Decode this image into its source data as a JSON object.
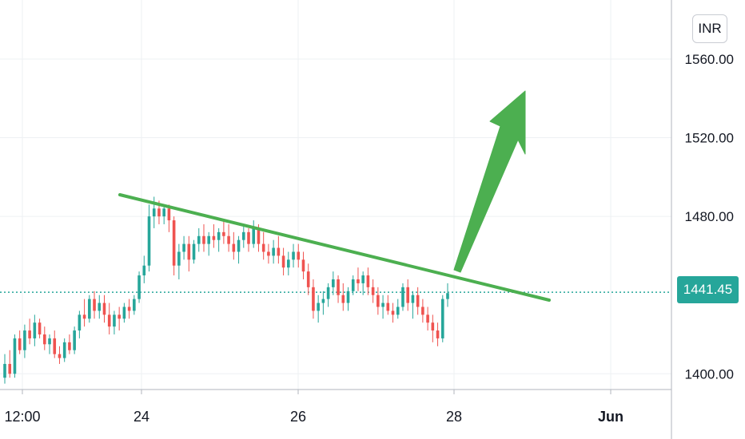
{
  "chart_data": {
    "type": "candlestick",
    "currency": "INR",
    "last_price": "1441.45",
    "ylim": [
      1392,
      1590
    ],
    "y_ticks": [
      "1400.00",
      "1480.00",
      "1520.00",
      "1560.00"
    ],
    "x_ticks": [
      "12:00",
      "24",
      "26",
      "28",
      "Jun"
    ],
    "grid": true,
    "colors": {
      "up": "#26a69a",
      "down": "#ef5350",
      "trendline": "#4caf50",
      "arrow": "#4caf50",
      "last_price": "#26a69a"
    },
    "ohlc": [
      [
        1398,
        1410,
        1395,
        1405
      ],
      [
        1405,
        1412,
        1398,
        1400
      ],
      [
        1400,
        1420,
        1398,
        1418
      ],
      [
        1418,
        1422,
        1410,
        1412
      ],
      [
        1412,
        1425,
        1408,
        1422
      ],
      [
        1422,
        1428,
        1415,
        1418
      ],
      [
        1418,
        1430,
        1414,
        1426
      ],
      [
        1426,
        1428,
        1418,
        1420
      ],
      [
        1420,
        1424,
        1412,
        1415
      ],
      [
        1415,
        1420,
        1410,
        1418
      ],
      [
        1418,
        1422,
        1408,
        1410
      ],
      [
        1410,
        1414,
        1405,
        1408
      ],
      [
        1408,
        1418,
        1406,
        1416
      ],
      [
        1416,
        1420,
        1410,
        1412
      ],
      [
        1412,
        1424,
        1410,
        1422
      ],
      [
        1422,
        1432,
        1418,
        1430
      ],
      [
        1430,
        1438,
        1424,
        1428
      ],
      [
        1428,
        1440,
        1426,
        1438
      ],
      [
        1438,
        1442,
        1428,
        1432
      ],
      [
        1432,
        1440,
        1428,
        1436
      ],
      [
        1436,
        1440,
        1426,
        1430
      ],
      [
        1430,
        1436,
        1420,
        1424
      ],
      [
        1424,
        1432,
        1420,
        1430
      ],
      [
        1430,
        1434,
        1422,
        1428
      ],
      [
        1428,
        1436,
        1426,
        1434
      ],
      [
        1434,
        1438,
        1428,
        1432
      ],
      [
        1432,
        1440,
        1430,
        1438
      ],
      [
        1438,
        1452,
        1436,
        1450
      ],
      [
        1450,
        1460,
        1446,
        1455
      ],
      [
        1455,
        1486,
        1452,
        1480
      ],
      [
        1480,
        1490,
        1474,
        1484
      ],
      [
        1484,
        1488,
        1476,
        1480
      ],
      [
        1480,
        1486,
        1476,
        1484
      ],
      [
        1484,
        1486,
        1472,
        1478
      ],
      [
        1478,
        1480,
        1450,
        1455
      ],
      [
        1455,
        1466,
        1448,
        1462
      ],
      [
        1462,
        1470,
        1458,
        1466
      ],
      [
        1466,
        1470,
        1452,
        1458
      ],
      [
        1458,
        1468,
        1456,
        1466
      ],
      [
        1466,
        1474,
        1462,
        1470
      ],
      [
        1470,
        1476,
        1462,
        1466
      ],
      [
        1466,
        1472,
        1460,
        1470
      ],
      [
        1470,
        1476,
        1464,
        1468
      ],
      [
        1468,
        1474,
        1462,
        1472
      ],
      [
        1472,
        1478,
        1466,
        1470
      ],
      [
        1470,
        1476,
        1462,
        1466
      ],
      [
        1466,
        1472,
        1458,
        1462
      ],
      [
        1462,
        1470,
        1456,
        1468
      ],
      [
        1468,
        1476,
        1464,
        1472
      ],
      [
        1472,
        1474,
        1462,
        1466
      ],
      [
        1466,
        1478,
        1464,
        1474
      ],
      [
        1474,
        1476,
        1462,
        1466
      ],
      [
        1466,
        1472,
        1458,
        1462
      ],
      [
        1462,
        1466,
        1456,
        1460
      ],
      [
        1460,
        1468,
        1456,
        1464
      ],
      [
        1464,
        1470,
        1456,
        1460
      ],
      [
        1460,
        1464,
        1450,
        1454
      ],
      [
        1454,
        1462,
        1450,
        1458
      ],
      [
        1458,
        1466,
        1454,
        1462
      ],
      [
        1462,
        1466,
        1454,
        1458
      ],
      [
        1458,
        1462,
        1448,
        1452
      ],
      [
        1452,
        1456,
        1440,
        1444
      ],
      [
        1444,
        1448,
        1428,
        1432
      ],
      [
        1432,
        1440,
        1426,
        1436
      ],
      [
        1436,
        1442,
        1430,
        1438
      ],
      [
        1438,
        1446,
        1434,
        1444
      ],
      [
        1444,
        1452,
        1440,
        1448
      ],
      [
        1448,
        1450,
        1436,
        1440
      ],
      [
        1440,
        1446,
        1432,
        1436
      ],
      [
        1436,
        1444,
        1432,
        1442
      ],
      [
        1442,
        1450,
        1440,
        1448
      ],
      [
        1448,
        1454,
        1442,
        1446
      ],
      [
        1446,
        1452,
        1440,
        1450
      ],
      [
        1450,
        1454,
        1440,
        1444
      ],
      [
        1444,
        1448,
        1436,
        1440
      ],
      [
        1440,
        1444,
        1430,
        1434
      ],
      [
        1434,
        1440,
        1428,
        1436
      ],
      [
        1436,
        1440,
        1430,
        1432
      ],
      [
        1432,
        1436,
        1426,
        1430
      ],
      [
        1430,
        1438,
        1428,
        1434
      ],
      [
        1434,
        1446,
        1432,
        1444
      ],
      [
        1444,
        1448,
        1432,
        1436
      ],
      [
        1436,
        1442,
        1428,
        1440
      ],
      [
        1440,
        1444,
        1430,
        1434
      ],
      [
        1434,
        1438,
        1426,
        1430
      ],
      [
        1430,
        1434,
        1422,
        1426
      ],
      [
        1426,
        1430,
        1416,
        1422
      ],
      [
        1422,
        1426,
        1414,
        1418
      ],
      [
        1418,
        1440,
        1416,
        1438
      ],
      [
        1438,
        1446,
        1434,
        1441
      ]
    ]
  }
}
